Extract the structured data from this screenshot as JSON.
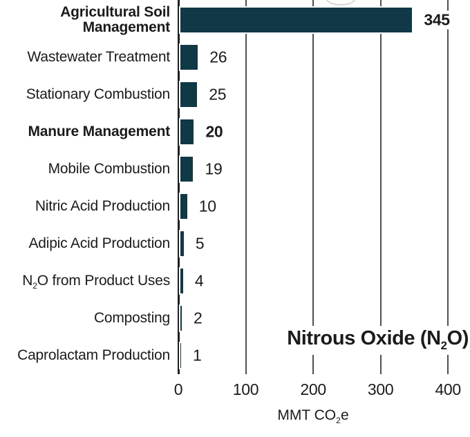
{
  "chart_data": {
    "type": "bar",
    "orientation": "horizontal",
    "title": "Nitrous Oxide (N~2~O)",
    "xlabel": "MMT CO~2~e",
    "categories": [
      "Agricultural Soil Management",
      "Wastewater Treatment",
      "Stationary Combustion",
      "Manure Management",
      "Mobile Combustion",
      "Nitric Acid Production",
      "Adipic Acid Production",
      "N~2~O from Product Uses",
      "Composting",
      "Caprolactam Production"
    ],
    "values": [
      345,
      26,
      25,
      20,
      19,
      10,
      5,
      4,
      2,
      1
    ],
    "value_labels": [
      "345",
      "26",
      "25",
      "20",
      "19",
      "10",
      "5",
      "4",
      "2",
      "1"
    ],
    "emphasized_rows": [
      0,
      3
    ],
    "xticks": [
      "0",
      "100",
      "200",
      "300",
      "400"
    ],
    "xtick_values": [
      0,
      100,
      200,
      300,
      400
    ],
    "xlim": [
      0,
      400
    ],
    "grid": true,
    "legend": false,
    "colors": {
      "bar": "#113846",
      "gridline": "#4f4f4f",
      "axis": "#1f1f1f",
      "text": "#1b1b1b",
      "background": "#ffffff"
    }
  }
}
